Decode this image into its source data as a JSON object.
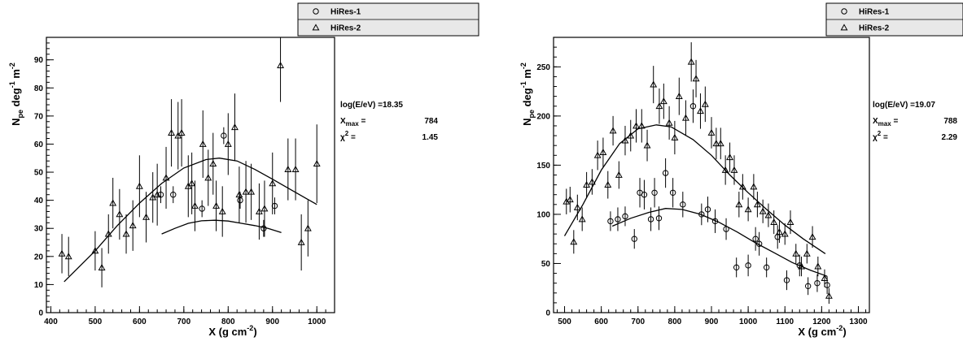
{
  "chart_data": [
    {
      "type": "scatter",
      "xlabel": "X (g cm",
      "xlabel_sup": "-2",
      "xlabel_close": ")",
      "ylabel": "N",
      "ylabel_sub": "pe",
      "ylabel_mid": " deg",
      "ylabel_sup1": "-1",
      "ylabel_m": " m",
      "ylabel_sup2": "-2",
      "xlim": [
        390,
        1040
      ],
      "ylim": [
        0,
        98
      ],
      "xticks": [
        400,
        500,
        600,
        700,
        800,
        900,
        1000
      ],
      "yticks": [
        0,
        10,
        20,
        30,
        40,
        50,
        60,
        70,
        80,
        90
      ],
      "grid": false,
      "legend": "top-right",
      "stats": {
        "energy_label": "log(E/eV) =",
        "energy_value": "18.35",
        "xmax_label": "X",
        "xmax_sub": "max",
        "xmax_eq": " =",
        "xmax_value": "784",
        "chi2_label": "χ",
        "chi2_sup": "2",
        "chi2_eq": " =",
        "chi2_value": "1.45"
      },
      "series": [
        {
          "name": "HiRes-1",
          "marker": "circle",
          "points": [
            [
              648,
              42,
              3
            ],
            [
              676,
              42,
              3
            ],
            [
              741,
              37,
              3
            ],
            [
              790,
              63,
              3
            ],
            [
              827,
              40,
              3
            ],
            [
              880,
              30,
              3
            ],
            [
              905,
              38,
              3
            ]
          ]
        },
        {
          "name": "HiRes-2",
          "marker": "triangle",
          "points": [
            [
              425,
              21,
              7
            ],
            [
              440,
              20,
              7
            ],
            [
              500,
              22,
              7
            ],
            [
              515,
              16,
              7
            ],
            [
              530,
              28,
              7
            ],
            [
              540,
              39,
              9
            ],
            [
              555,
              35,
              9
            ],
            [
              570,
              28,
              7
            ],
            [
              585,
              31,
              9
            ],
            [
              600,
              45,
              11
            ],
            [
              615,
              34,
              9
            ],
            [
              630,
              41,
              9
            ],
            [
              640,
              42,
              11
            ],
            [
              660,
              48,
              11
            ],
            [
              672,
              64,
              12
            ],
            [
              687,
              63,
              12
            ],
            [
              695,
              64,
              12
            ],
            [
              710,
              45,
              11
            ],
            [
              718,
              46,
              11
            ],
            [
              725,
              38,
              9
            ],
            [
              743,
              60,
              12
            ],
            [
              755,
              48,
              10
            ],
            [
              766,
              53,
              11
            ],
            [
              773,
              38,
              9
            ],
            [
              787,
              36,
              9
            ],
            [
              800,
              60,
              11
            ],
            [
              815,
              66,
              12
            ],
            [
              825,
              42,
              10
            ],
            [
              840,
              43,
              11
            ],
            [
              852,
              43,
              10
            ],
            [
              870,
              36,
              10
            ],
            [
              882,
              37,
              10
            ],
            [
              900,
              46,
              11
            ],
            [
              918,
              88,
              13
            ],
            [
              935,
              51,
              11
            ],
            [
              952,
              51,
              11
            ],
            [
              965,
              25,
              10
            ],
            [
              980,
              30,
              10
            ],
            [
              1000,
              53,
              14
            ]
          ]
        }
      ],
      "fits": [
        {
          "name": "HiRes-2 fit",
          "points": [
            [
              430,
              11
            ],
            [
              500,
              22
            ],
            [
              550,
              31
            ],
            [
              600,
              39
            ],
            [
              650,
              46
            ],
            [
              700,
              51.5
            ],
            [
              750,
              54.5
            ],
            [
              780,
              55
            ],
            [
              820,
              54
            ],
            [
              860,
              51
            ],
            [
              900,
              47.5
            ],
            [
              950,
              43
            ],
            [
              1000,
              38.5
            ]
          ]
        },
        {
          "name": "HiRes-1 fit",
          "points": [
            [
              650,
              28
            ],
            [
              680,
              30
            ],
            [
              710,
              31.8
            ],
            [
              740,
              32.7
            ],
            [
              770,
              32.9
            ],
            [
              800,
              32.6
            ],
            [
              830,
              31.8
            ],
            [
              860,
              31
            ],
            [
              890,
              30
            ],
            [
              920,
              28.5
            ]
          ]
        }
      ]
    },
    {
      "type": "scatter",
      "xlabel": "X (g cm",
      "xlabel_sup": "-2",
      "xlabel_close": ")",
      "ylabel": "N",
      "ylabel_sub": "pe",
      "ylabel_mid": " deg",
      "ylabel_sup1": "-1",
      "ylabel_m": " m",
      "ylabel_sup2": "-2",
      "xlim": [
        470,
        1330
      ],
      "ylim": [
        0,
        280
      ],
      "xticks": [
        500,
        600,
        700,
        800,
        900,
        1000,
        1100,
        1200,
        1300
      ],
      "yticks": [
        0,
        50,
        100,
        150,
        200,
        250
      ],
      "grid": false,
      "legend": "top-right",
      "stats": {
        "energy_label": "log(E/eV) =",
        "energy_value": "19.07",
        "xmax_label": "X",
        "xmax_sub": "max",
        "xmax_eq": " =",
        "xmax_value": "788",
        "chi2_label": "χ",
        "chi2_sup": "2",
        "chi2_eq": " =",
        "chi2_value": "2.29"
      },
      "series": [
        {
          "name": "HiRes-1",
          "marker": "circle",
          "points": [
            [
              625,
              93,
              10
            ],
            [
              645,
              95,
              12
            ],
            [
              665,
              98,
              10
            ],
            [
              690,
              75,
              10
            ],
            [
              705,
              122,
              15
            ],
            [
              717,
              120,
              15
            ],
            [
              735,
              95,
              12
            ],
            [
              745,
              122,
              15
            ],
            [
              757,
              96,
              12
            ],
            [
              775,
              142,
              15
            ],
            [
              795,
              122,
              15
            ],
            [
              822,
              110,
              13
            ],
            [
              850,
              210,
              17
            ],
            [
              873,
              100,
              11
            ],
            [
              890,
              105,
              13
            ],
            [
              910,
              93,
              12
            ],
            [
              940,
              85,
              11
            ],
            [
              968,
              46,
              10
            ],
            [
              1000,
              48,
              11
            ],
            [
              1020,
              75,
              12
            ],
            [
              1030,
              70,
              12
            ],
            [
              1050,
              46,
              10
            ],
            [
              1080,
              77,
              12
            ],
            [
              1105,
              33,
              10
            ],
            [
              1140,
              48,
              11
            ],
            [
              1163,
              27,
              9
            ],
            [
              1188,
              30,
              9
            ],
            [
              1215,
              28,
              9
            ]
          ]
        },
        {
          "name": "HiRes-2",
          "marker": "triangle",
          "points": [
            [
              505,
              113,
              13
            ],
            [
              515,
              115,
              13
            ],
            [
              525,
              72,
              12
            ],
            [
              535,
              107,
              13
            ],
            [
              548,
              95,
              12
            ],
            [
              560,
              130,
              13
            ],
            [
              575,
              133,
              13
            ],
            [
              590,
              160,
              15
            ],
            [
              605,
              163,
              15
            ],
            [
              618,
              130,
              14
            ],
            [
              632,
              185,
              15
            ],
            [
              648,
              140,
              14
            ],
            [
              665,
              175,
              15
            ],
            [
              680,
              180,
              16
            ],
            [
              695,
              190,
              17
            ],
            [
              710,
              190,
              17
            ],
            [
              725,
              170,
              16
            ],
            [
              742,
              232,
              19
            ],
            [
              758,
              210,
              18
            ],
            [
              770,
              215,
              18
            ],
            [
              785,
              193,
              17
            ],
            [
              800,
              178,
              17
            ],
            [
              812,
              220,
              19
            ],
            [
              830,
              198,
              18
            ],
            [
              845,
              255,
              20
            ],
            [
              858,
              238,
              19
            ],
            [
              870,
              205,
              18
            ],
            [
              883,
              212,
              18
            ],
            [
              900,
              183,
              16
            ],
            [
              913,
              172,
              16
            ],
            [
              925,
              172,
              16
            ],
            [
              938,
              145,
              15
            ],
            [
              950,
              158,
              15
            ],
            [
              962,
              145,
              15
            ],
            [
              975,
              110,
              13
            ],
            [
              985,
              128,
              13
            ],
            [
              1000,
              105,
              12
            ],
            [
              1015,
              128,
              13
            ],
            [
              1025,
              110,
              13
            ],
            [
              1040,
              103,
              12
            ],
            [
              1055,
              99,
              12
            ],
            [
              1070,
              92,
              12
            ],
            [
              1085,
              82,
              11
            ],
            [
              1100,
              80,
              11
            ],
            [
              1115,
              92,
              12
            ],
            [
              1130,
              60,
              10
            ],
            [
              1145,
              47,
              10
            ],
            [
              1160,
              60,
              10
            ],
            [
              1175,
              77,
              11
            ],
            [
              1190,
              47,
              10
            ],
            [
              1208,
              35,
              9
            ],
            [
              1220,
              17,
              8
            ]
          ]
        }
      ],
      "fits": [
        {
          "name": "HiRes-2 fit",
          "points": [
            [
              500,
              78
            ],
            [
              550,
              110
            ],
            [
              600,
              145
            ],
            [
              650,
              172
            ],
            [
              700,
              187
            ],
            [
              750,
              191
            ],
            [
              790,
              189
            ],
            [
              850,
              176
            ],
            [
              900,
              160
            ],
            [
              950,
              140
            ],
            [
              1000,
              122
            ],
            [
              1050,
              105
            ],
            [
              1100,
              89
            ],
            [
              1150,
              75
            ],
            [
              1210,
              60
            ]
          ]
        },
        {
          "name": "HiRes-1 fit",
          "points": [
            [
              630,
              88
            ],
            [
              680,
              96
            ],
            [
              730,
              102
            ],
            [
              775,
              106
            ],
            [
              820,
              105
            ],
            [
              870,
              100
            ],
            [
              920,
              92
            ],
            [
              970,
              82
            ],
            [
              1020,
              71
            ],
            [
              1070,
              61
            ],
            [
              1120,
              51
            ],
            [
              1170,
              43
            ],
            [
              1215,
              37
            ]
          ]
        }
      ]
    }
  ]
}
